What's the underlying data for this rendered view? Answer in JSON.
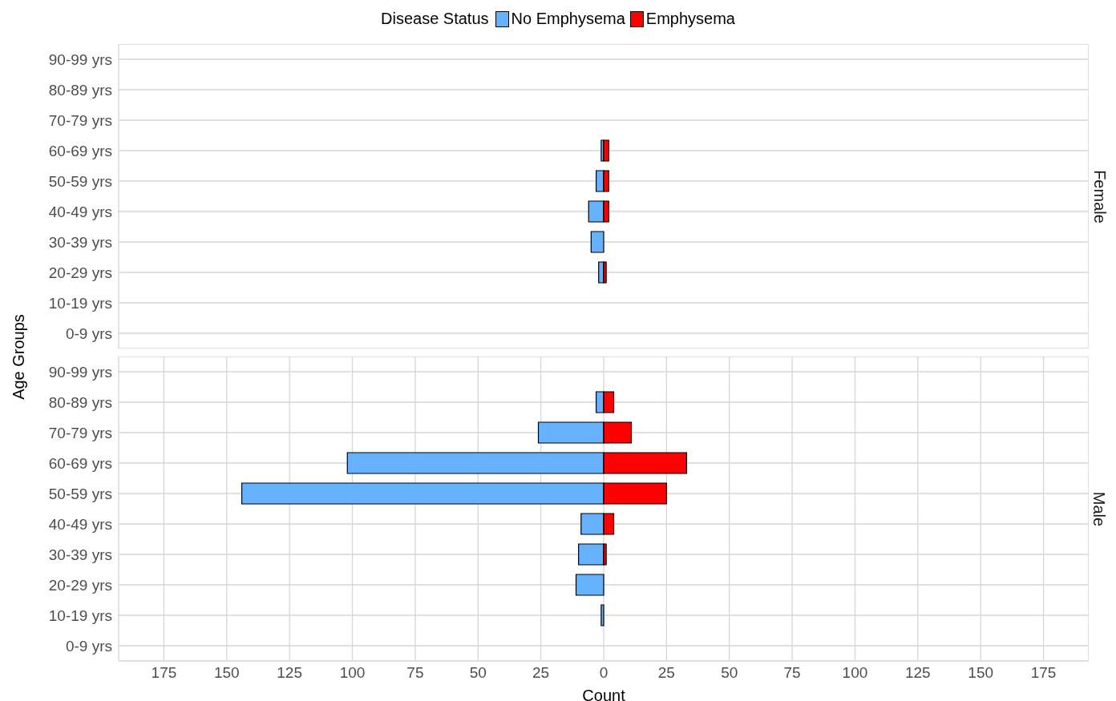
{
  "chart_data": [
    {
      "type": "bar",
      "orientation": "horizontal",
      "stacked": true,
      "title": "Female",
      "ylabel": "Age Groups",
      "legend_title": "Disease Status",
      "legend": "top",
      "grid": true,
      "tick_labels": "y",
      "categories": [
        "90-99 yrs",
        "80-89 yrs",
        "70-79 yrs",
        "60-69 yrs",
        "50-59 yrs",
        "40-49 yrs",
        "30-39 yrs",
        "20-29 yrs",
        "10-19 yrs",
        "0-9 yrs"
      ],
      "series": [
        {
          "name": "No Emphysema",
          "color": "#66b2ff",
          "values": [
            0,
            0,
            0,
            -1,
            -3,
            -6,
            -5,
            -2,
            0,
            0
          ]
        },
        {
          "name": "Emphysema",
          "color": "#ff0000",
          "values": [
            0,
            0,
            0,
            2,
            2,
            2,
            0,
            1,
            0,
            0
          ]
        }
      ],
      "xlim": [
        -193,
        193
      ],
      "xticks": [
        {
          "value": -175,
          "label": null
        },
        {
          "value": -150,
          "label": null
        },
        {
          "value": -125,
          "label": null
        },
        {
          "value": -100,
          "label": null
        },
        {
          "value": -75,
          "label": null
        },
        {
          "value": -50,
          "label": null
        },
        {
          "value": -25,
          "label": null
        },
        {
          "value": 0,
          "label": null
        },
        {
          "value": 25,
          "label": null
        },
        {
          "value": 50,
          "label": null
        },
        {
          "value": 75,
          "label": null
        },
        {
          "value": 100,
          "label": null
        },
        {
          "value": 125,
          "label": null
        },
        {
          "value": 150,
          "label": null
        },
        {
          "value": 175,
          "label": null
        }
      ]
    },
    {
      "type": "bar",
      "orientation": "horizontal",
      "stacked": true,
      "title": "Male",
      "xlabel": "Count",
      "grid": true,
      "categories": [
        "90-99 yrs",
        "80-89 yrs",
        "70-79 yrs",
        "60-69 yrs",
        "50-59 yrs",
        "40-49 yrs",
        "30-39 yrs",
        "20-29 yrs",
        "10-19 yrs",
        "0-9 yrs"
      ],
      "series": [
        {
          "color": "#66b2ff",
          "values": [
            0,
            -3,
            -26,
            -102,
            -144,
            -9,
            -10,
            -11,
            -1,
            0
          ]
        },
        {
          "color": "#ff0000",
          "values": [
            0,
            4,
            11,
            33,
            25,
            4,
            1,
            0,
            0,
            0
          ]
        }
      ],
      "xlim": [
        -193,
        193
      ],
      "xticks": [
        {
          "value": -175,
          "label": "175"
        },
        {
          "value": -150,
          "label": "150"
        },
        {
          "value": -125,
          "label": "125"
        },
        {
          "value": -100,
          "label": "100"
        },
        {
          "value": -75,
          "label": "75"
        },
        {
          "value": -50,
          "label": "50"
        },
        {
          "value": -25,
          "label": "25"
        },
        0,
        25,
        50,
        75,
        100,
        125,
        150,
        175
      ]
    }
  ]
}
